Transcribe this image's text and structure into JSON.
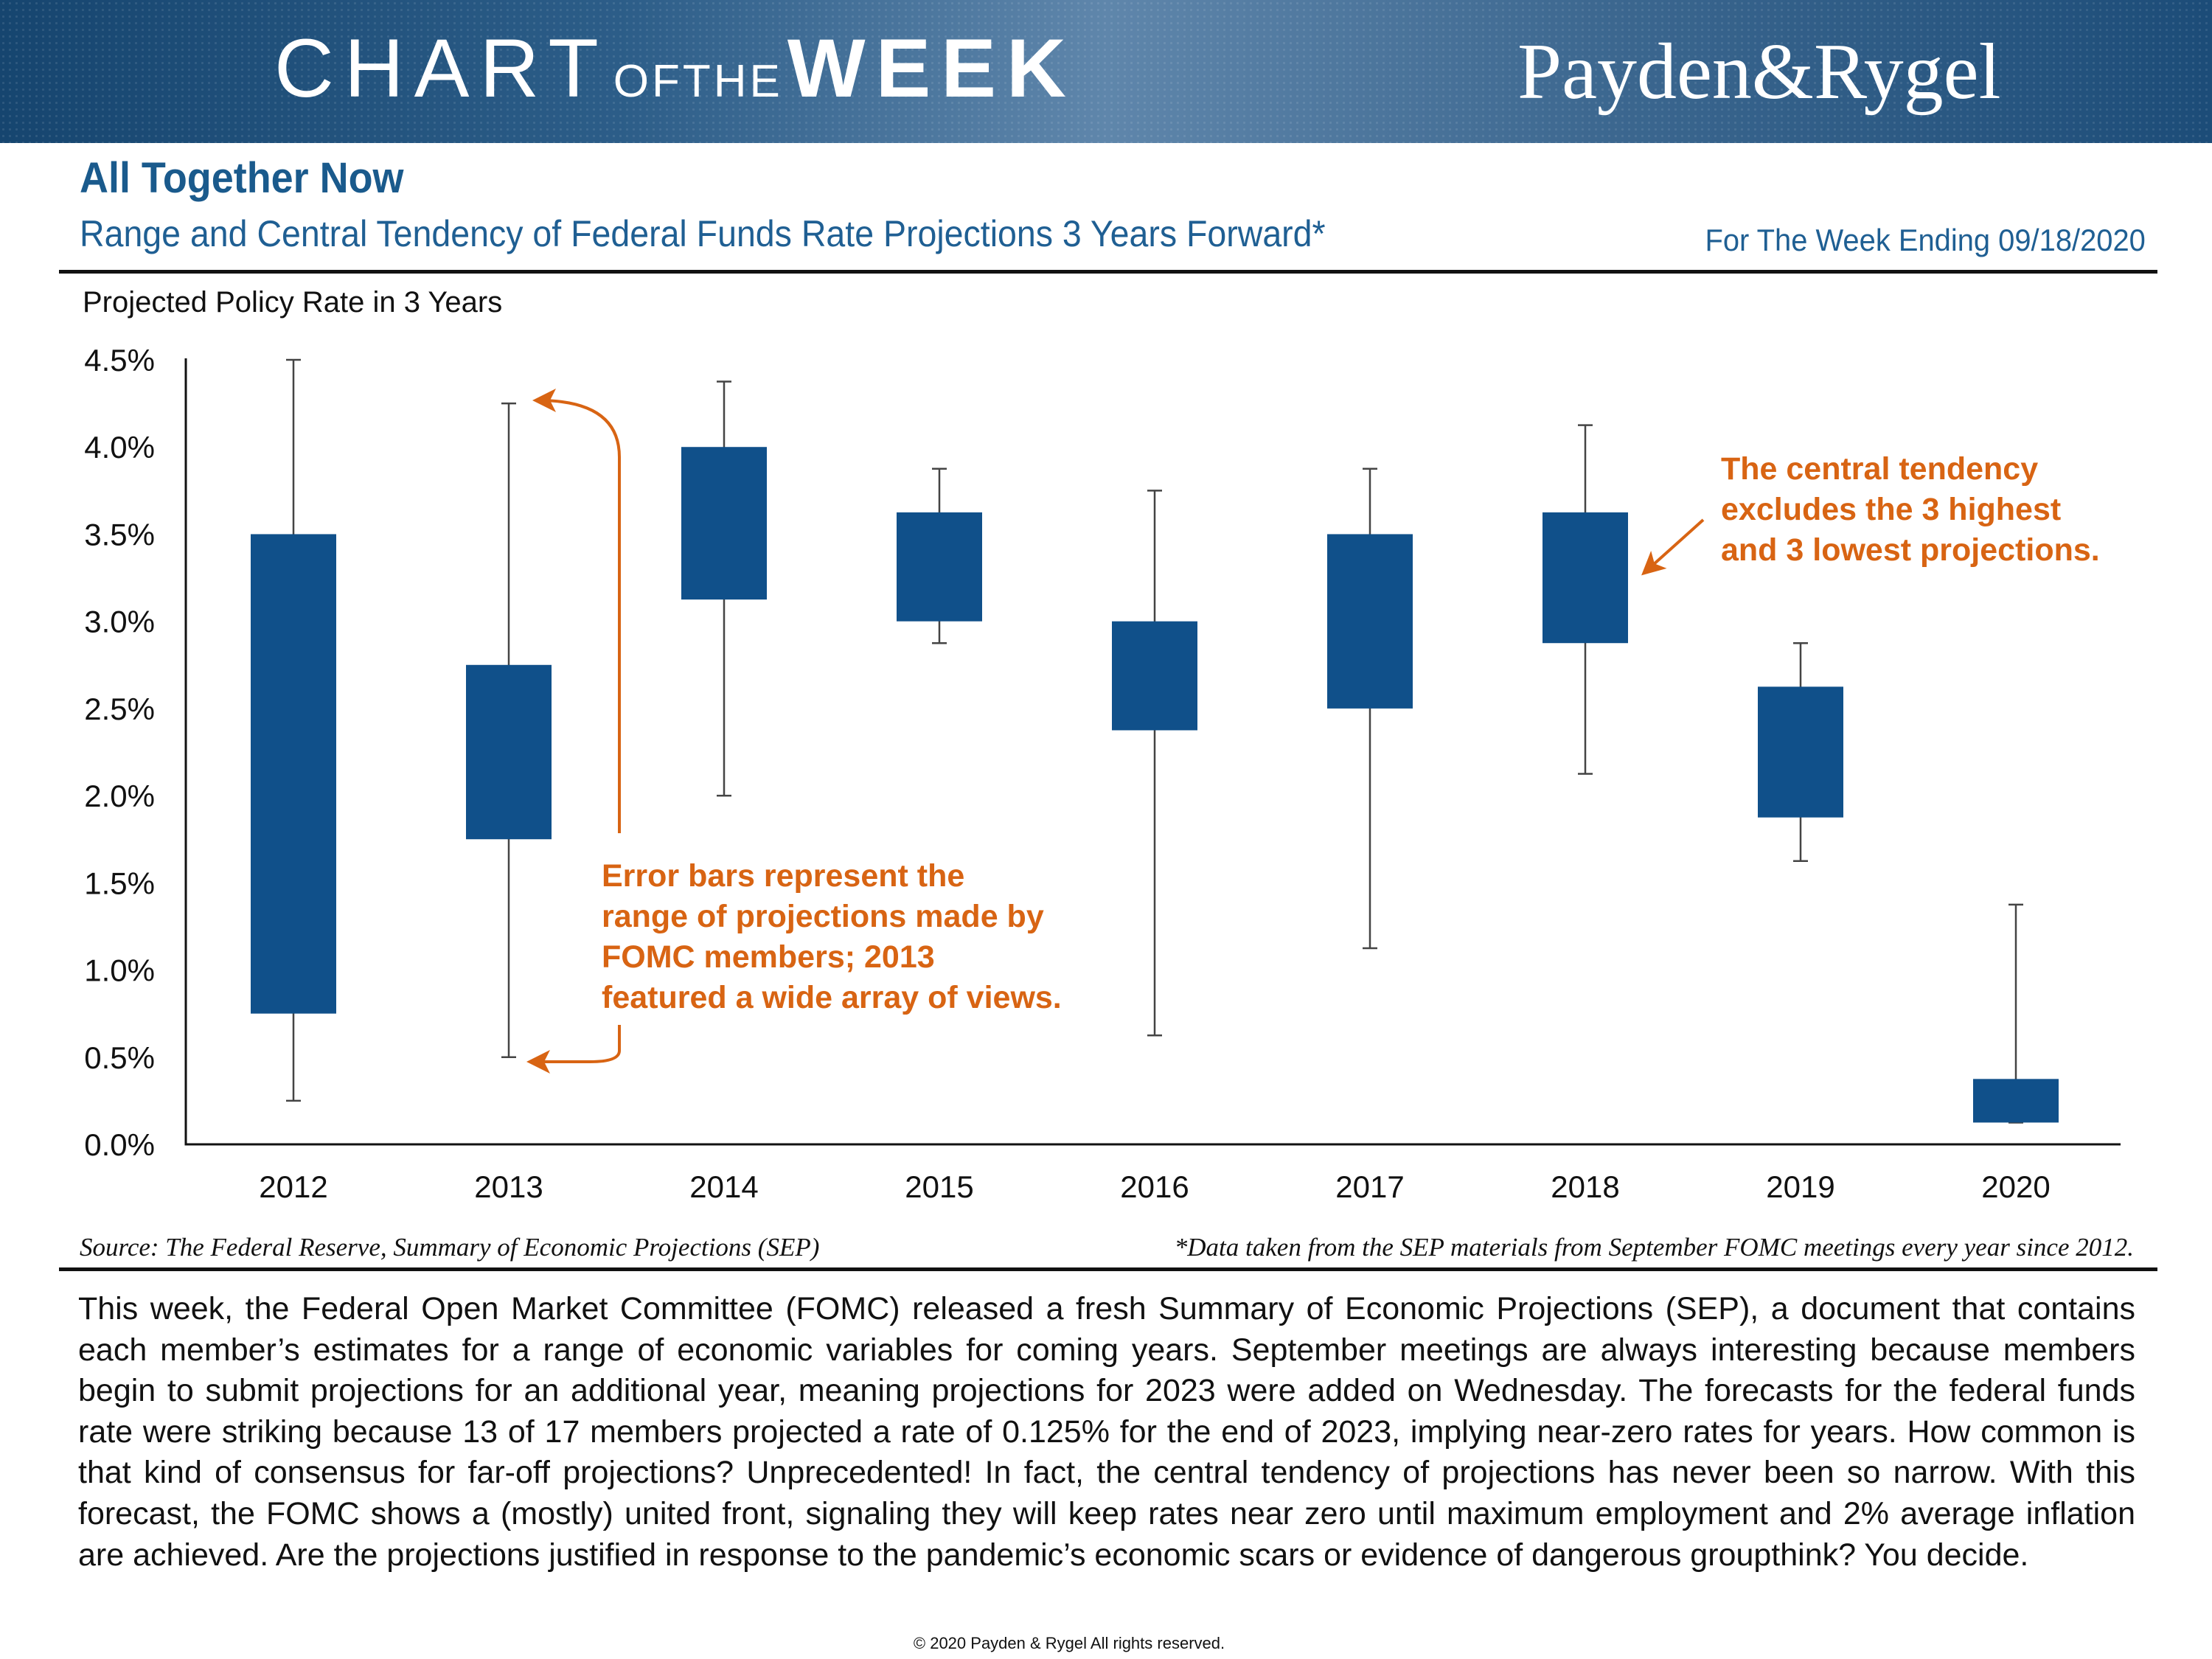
{
  "banner": {
    "title_chart": "CHART",
    "title_ofthe": "OFTHE",
    "title_week": "WEEK",
    "brand": "Payden&Rygel"
  },
  "header": {
    "title": "All Together Now",
    "subtitle": "Range and Central Tendency of Federal Funds Rate Projections 3 Years Forward*",
    "week_ending": "For The Week Ending 09/18/2020"
  },
  "colors": {
    "bar": "#10508a",
    "annotation": "#d86413",
    "whisker": "#444444",
    "axis": "#111111"
  },
  "chart_data": {
    "type": "box",
    "ylabel": "Projected Policy Rate in 3 Years",
    "ylim": [
      0,
      4.5
    ],
    "yticks": [
      0,
      0.5,
      1.0,
      1.5,
      2.0,
      2.5,
      3.0,
      3.5,
      4.0,
      4.5
    ],
    "ytick_labels": [
      "0.0%",
      "0.5%",
      "1.0%",
      "1.5%",
      "2.0%",
      "2.5%",
      "3.0%",
      "3.5%",
      "4.0%",
      "4.5%"
    ],
    "categories": [
      "2012",
      "2013",
      "2014",
      "2015",
      "2016",
      "2017",
      "2018",
      "2019",
      "2020"
    ],
    "range_low": [
      0.25,
      0.5,
      2.0,
      2.875,
      0.625,
      1.125,
      2.125,
      1.625,
      0.125
    ],
    "range_high": [
      4.5,
      4.25,
      4.375,
      3.875,
      3.75,
      3.875,
      4.125,
      2.875,
      1.375
    ],
    "central_low": [
      0.75,
      1.75,
      3.125,
      3.0,
      2.375,
      2.5,
      2.875,
      1.875,
      0.125
    ],
    "central_high": [
      3.5,
      2.75,
      4.0,
      3.625,
      3.0,
      3.5,
      3.625,
      2.625,
      0.375
    ]
  },
  "annotations": {
    "error_bars": [
      "Error bars represent the",
      "range of projections made by",
      "FOMC members; 2013",
      "featured a wide array of views."
    ],
    "central_tendency": [
      "The central tendency",
      "excludes the 3 highest",
      "and 3 lowest projections."
    ]
  },
  "source": "Source: The Federal Reserve, Summary of Economic Projections (SEP)",
  "footnote": "*Data taken from the SEP materials from September FOMC meetings every year since 2012.",
  "body": "This week, the Federal Open Market Committee (FOMC) released a fresh Summary of Economic Projections (SEP), a document that contains each member’s estimates for a range of economic variables for coming years. September meetings are always interesting because members begin to submit projections for an additional year, meaning projections for 2023 were added on Wednesday. The forecasts for the federal funds rate were striking because 13 of 17 members projected a rate of 0.125% for the end of 2023, implying near-zero rates for years. How common is that kind of consensus for far-off projections? Unprecedented! In fact, the central tendency of projections has never been so narrow. With this forecast, the FOMC shows a (mostly) united front, signaling they will keep rates near zero until maximum employment and 2% average inflation are achieved. Are the projections justified in response to the pandemic’s economic scars or evidence of dangerous groupthink? You decide.",
  "copyright": "© 2020 Payden & Rygel All rights reserved."
}
